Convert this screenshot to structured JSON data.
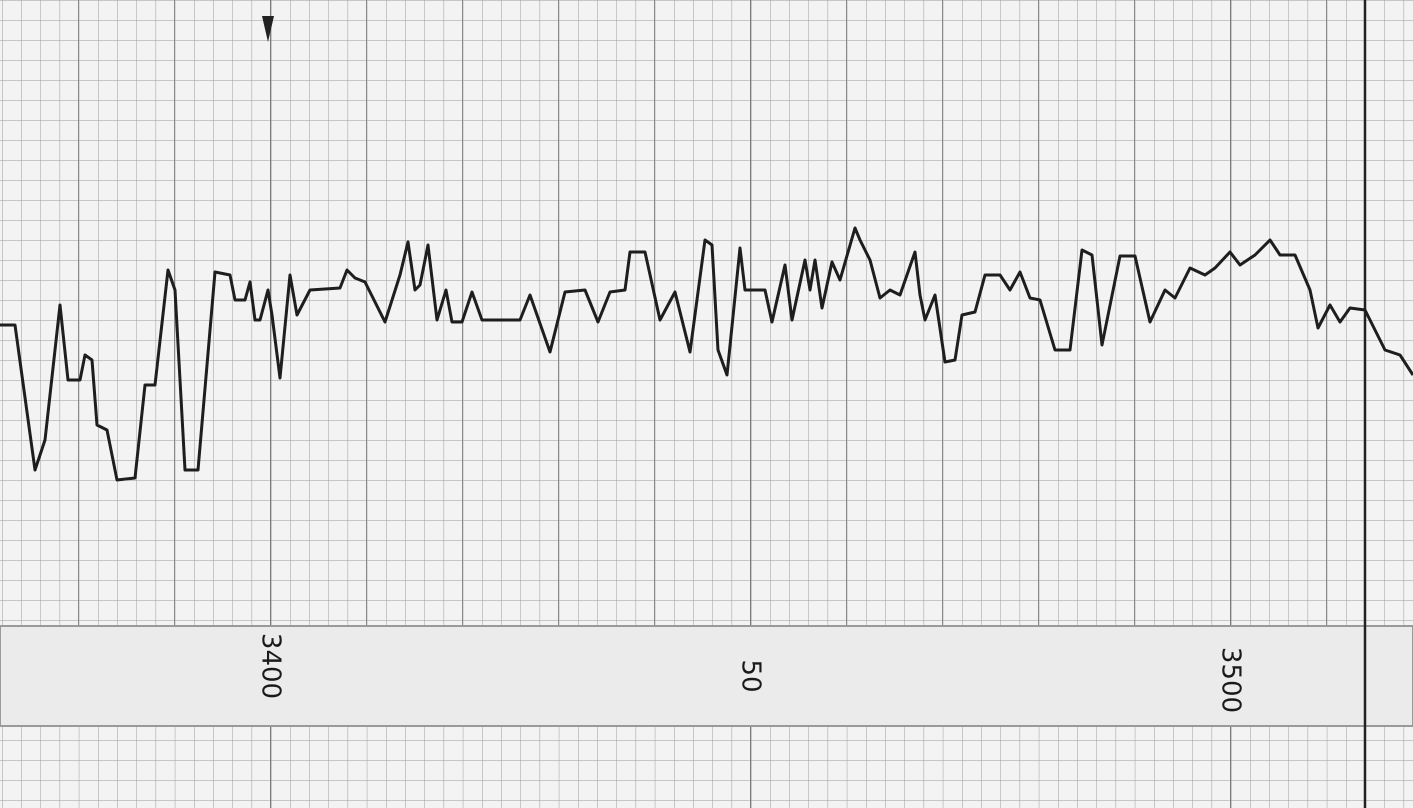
{
  "scale_labels": [
    "3400",
    "50",
    "3500"
  ]
}
